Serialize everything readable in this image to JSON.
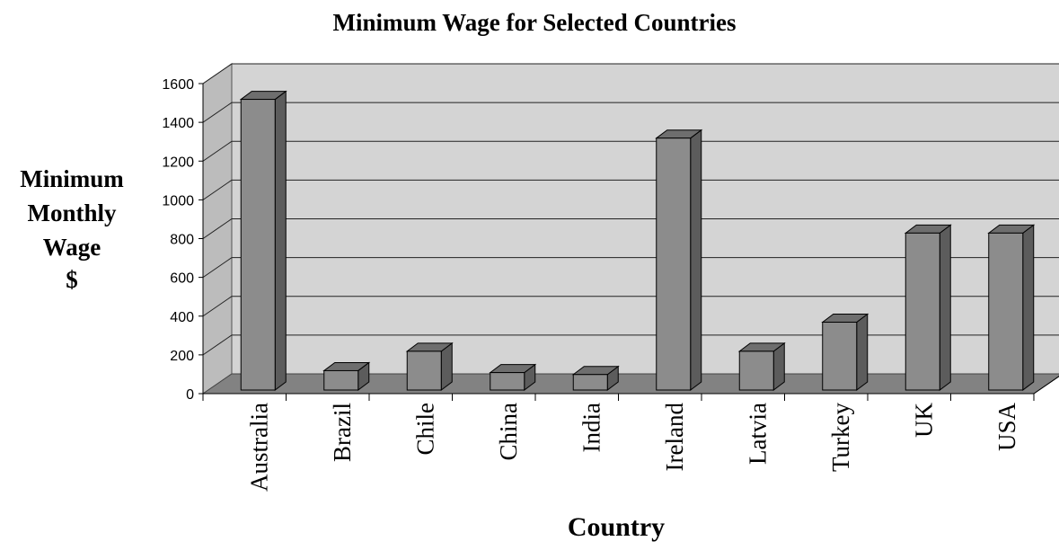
{
  "chart_data": {
    "type": "bar",
    "title": "Minimum Wage for Selected Countries",
    "xlabel": "Country",
    "ylabel_lines": [
      "Minimum",
      "Monthly",
      "Wage",
      "$"
    ],
    "categories": [
      "Australia",
      "Brazil",
      "Chile",
      "China",
      "India",
      "Ireland",
      "Latvia",
      "Turkey",
      "UK",
      "USA"
    ],
    "values": [
      1500,
      100,
      200,
      90,
      80,
      1300,
      200,
      350,
      810,
      810
    ],
    "ylim": [
      0,
      1600
    ],
    "yticks": [
      0,
      200,
      400,
      600,
      800,
      1000,
      1200,
      1400,
      1600
    ],
    "grid": true,
    "style": "3d",
    "colors": {
      "bar_front": "#8c8c8c",
      "bar_side": "#5c5c5c",
      "bar_top": "#6e6e6e",
      "back_wall": "#d4d4d4",
      "side_wall": "#bcbcbc",
      "floor": "#828282"
    }
  }
}
